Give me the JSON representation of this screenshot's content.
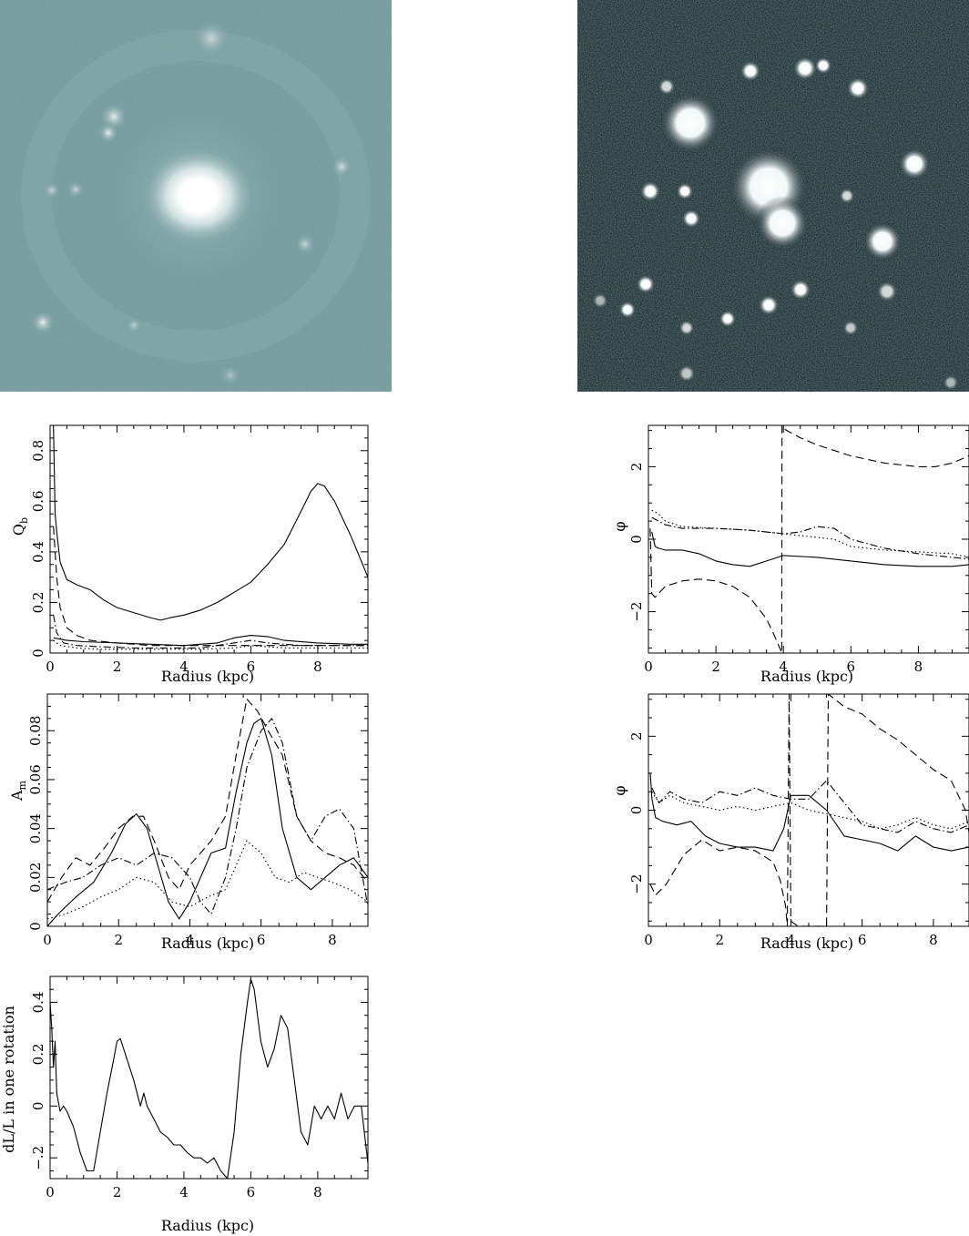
{
  "images": [
    {
      "description_name": "galaxy-blue-band-image",
      "tone": "#6f9698"
    },
    {
      "description_name": "galaxy-h-alpha-image",
      "tone": "#0f2124"
    }
  ],
  "chart_data": [
    {
      "id": "qb",
      "type": "line",
      "xlabel": "Radius (kpc)",
      "ylabel": "Q",
      "ylabel_sub": "b",
      "xlim": [
        0,
        9.5
      ],
      "ylim": [
        0,
        0.9
      ],
      "xticks": [
        0,
        2,
        4,
        6,
        8
      ],
      "yticks": [
        0,
        0.2,
        0.4,
        0.6,
        0.8
      ],
      "series": [
        {
          "style": "solid",
          "x": [
            0.1,
            0.15,
            0.2,
            0.3,
            0.5,
            0.8,
            1.2,
            1.6,
            2.0,
            2.5,
            3.0,
            3.3,
            3.6,
            4.0,
            4.5,
            5.0,
            5.5,
            6.0,
            6.5,
            7.0,
            7.5,
            7.8,
            8.0,
            8.2,
            8.5,
            9.0,
            9.5
          ],
          "y": [
            0.9,
            0.55,
            0.48,
            0.36,
            0.29,
            0.27,
            0.25,
            0.21,
            0.18,
            0.16,
            0.14,
            0.13,
            0.14,
            0.15,
            0.17,
            0.2,
            0.24,
            0.28,
            0.35,
            0.43,
            0.56,
            0.64,
            0.67,
            0.66,
            0.6,
            0.46,
            0.3
          ]
        },
        {
          "style": "dashed",
          "x": [
            0.1,
            0.2,
            0.3,
            0.5,
            0.8,
            1.2,
            2,
            3,
            4,
            5,
            6,
            7,
            8,
            9,
            9.5
          ],
          "y": [
            0.5,
            0.3,
            0.18,
            0.1,
            0.07,
            0.05,
            0.04,
            0.03,
            0.03,
            0.03,
            0.03,
            0.03,
            0.03,
            0.03,
            0.03
          ]
        },
        {
          "style": "dotdash",
          "x": [
            0.1,
            0.2,
            0.4,
            0.8,
            1.5,
            2.5,
            3.5,
            4.5,
            5.5,
            6.0,
            6.5,
            7.5,
            8.5,
            9.5
          ],
          "y": [
            0.15,
            0.08,
            0.04,
            0.03,
            0.025,
            0.02,
            0.02,
            0.02,
            0.04,
            0.05,
            0.04,
            0.03,
            0.03,
            0.03
          ]
        },
        {
          "style": "dotted",
          "x": [
            0.1,
            0.3,
            0.8,
            1.5,
            2.5,
            3.5,
            4.5,
            5.5,
            6.0,
            7.0,
            8.0,
            9.5
          ],
          "y": [
            0.05,
            0.03,
            0.02,
            0.015,
            0.015,
            0.015,
            0.015,
            0.02,
            0.03,
            0.02,
            0.02,
            0.02
          ]
        },
        {
          "style": "solid",
          "x": [
            0.1,
            0.5,
            1.0,
            2.0,
            3.0,
            4.0,
            5.0,
            5.5,
            6.0,
            6.5,
            7.0,
            8.0,
            9.0,
            9.5
          ],
          "y": [
            0.06,
            0.05,
            0.045,
            0.04,
            0.035,
            0.03,
            0.04,
            0.06,
            0.07,
            0.065,
            0.05,
            0.04,
            0.035,
            0.035
          ]
        }
      ]
    },
    {
      "id": "phi-top",
      "type": "line",
      "xlabel": "Radius (kpc)",
      "ylabel": "φ",
      "xlim": [
        0,
        9.5
      ],
      "ylim": [
        -3.1416,
        3.1416
      ],
      "xticks": [
        0,
        2,
        4,
        6,
        8
      ],
      "yticks": [
        -2,
        0,
        2
      ],
      "series": [
        {
          "style": "dashed",
          "x": [
            0.05,
            0.1,
            0.2,
            0.3,
            0.5,
            1.0,
            1.5,
            2.0,
            2.5,
            3.0,
            3.5,
            3.8,
            3.95,
            3.96,
            4.0,
            4.5,
            5.0,
            6.0,
            7.0,
            8.0,
            8.5,
            9.0,
            9.5
          ],
          "y": [
            0.3,
            -1.5,
            -1.6,
            -1.5,
            -1.3,
            -1.15,
            -1.1,
            -1.15,
            -1.3,
            -1.6,
            -2.2,
            -2.8,
            -3.14,
            3.14,
            3.05,
            2.8,
            2.6,
            2.3,
            2.1,
            2.0,
            2.0,
            2.1,
            2.3
          ]
        },
        {
          "style": "solid",
          "x": [
            0.1,
            0.2,
            0.3,
            0.5,
            1.0,
            1.5,
            2.0,
            2.5,
            3.0,
            3.5,
            4.0,
            5.0,
            6.0,
            7.0,
            8.0,
            9.0,
            9.5
          ],
          "y": [
            0.2,
            -0.2,
            -0.25,
            -0.3,
            -0.3,
            -0.4,
            -0.6,
            -0.7,
            -0.75,
            -0.6,
            -0.45,
            -0.5,
            -0.6,
            -0.7,
            -0.75,
            -0.75,
            -0.7
          ]
        },
        {
          "style": "dotted",
          "x": [
            0.1,
            0.3,
            0.5,
            1.0,
            2.0,
            3.0,
            4.0,
            4.5,
            5.0,
            5.5,
            6.0,
            7.0,
            8.0,
            9.0,
            9.5
          ],
          "y": [
            0.8,
            0.7,
            0.5,
            0.35,
            0.3,
            0.25,
            0.15,
            0.1,
            0.05,
            0.0,
            -0.2,
            -0.3,
            -0.35,
            -0.4,
            -0.5
          ]
        },
        {
          "style": "dotdash",
          "x": [
            0.1,
            0.3,
            0.5,
            1.0,
            2.0,
            3.0,
            4.0,
            4.5,
            5.0,
            5.5,
            6.0,
            7.0,
            8.0,
            9.0,
            9.5
          ],
          "y": [
            0.6,
            0.5,
            0.4,
            0.3,
            0.3,
            0.25,
            0.15,
            0.2,
            0.35,
            0.3,
            0.0,
            -0.25,
            -0.4,
            -0.5,
            -0.55
          ]
        }
      ]
    },
    {
      "id": "am",
      "type": "line",
      "xlabel": "Radius (kpc)",
      "ylabel": "A",
      "ylabel_sub": "m",
      "xlim": [
        0,
        9
      ],
      "ylim": [
        0,
        0.095
      ],
      "xticks": [
        0,
        2,
        4,
        6,
        8
      ],
      "yticks": [
        0,
        0.02,
        0.04,
        0.06,
        0.08
      ],
      "series": [
        {
          "style": "solid",
          "x": [
            0,
            0.3,
            0.8,
            1.3,
            1.8,
            2.2,
            2.5,
            2.8,
            3.1,
            3.4,
            3.7,
            4.0,
            4.3,
            4.6,
            5.0,
            5.3,
            5.6,
            5.8,
            6.0,
            6.3,
            6.6,
            7.0,
            7.4,
            7.8,
            8.2,
            8.6,
            9.0
          ],
          "y": [
            0.0,
            0.005,
            0.012,
            0.018,
            0.03,
            0.042,
            0.046,
            0.04,
            0.025,
            0.01,
            0.003,
            0.01,
            0.02,
            0.03,
            0.032,
            0.055,
            0.075,
            0.083,
            0.085,
            0.07,
            0.04,
            0.02,
            0.015,
            0.02,
            0.025,
            0.028,
            0.02
          ]
        },
        {
          "style": "dashed",
          "x": [
            0,
            0.4,
            0.8,
            1.2,
            1.6,
            2.0,
            2.4,
            2.7,
            3.0,
            3.4,
            3.7,
            4.0,
            4.3,
            4.6,
            5.0,
            5.3,
            5.6,
            5.9,
            6.2,
            6.6,
            7.0,
            7.4,
            7.8,
            8.2,
            8.6,
            9.0
          ],
          "y": [
            0.01,
            0.02,
            0.028,
            0.025,
            0.032,
            0.04,
            0.045,
            0.045,
            0.035,
            0.02,
            0.015,
            0.025,
            0.03,
            0.035,
            0.045,
            0.07,
            0.093,
            0.088,
            0.08,
            0.07,
            0.045,
            0.035,
            0.03,
            0.028,
            0.025,
            0.018
          ]
        },
        {
          "style": "dotdash",
          "x": [
            0,
            0.5,
            1.0,
            1.5,
            2.0,
            2.5,
            3.0,
            3.5,
            4.0,
            4.3,
            4.6,
            5.0,
            5.3,
            5.6,
            6.0,
            6.3,
            6.6,
            7.0,
            7.4,
            7.8,
            8.2,
            8.6,
            9.0
          ],
          "y": [
            0.015,
            0.018,
            0.02,
            0.025,
            0.028,
            0.025,
            0.03,
            0.028,
            0.02,
            0.01,
            0.005,
            0.02,
            0.04,
            0.065,
            0.08,
            0.085,
            0.075,
            0.045,
            0.035,
            0.045,
            0.048,
            0.04,
            0.008
          ]
        },
        {
          "style": "dotted",
          "x": [
            0,
            0.5,
            1.0,
            1.5,
            2.0,
            2.5,
            3.0,
            3.5,
            4.0,
            4.5,
            5.0,
            5.3,
            5.6,
            6.0,
            6.4,
            6.8,
            7.2,
            7.6,
            8.0,
            8.5,
            9.0
          ],
          "y": [
            0.003,
            0.005,
            0.008,
            0.012,
            0.015,
            0.02,
            0.018,
            0.01,
            0.008,
            0.012,
            0.015,
            0.025,
            0.035,
            0.03,
            0.02,
            0.018,
            0.022,
            0.02,
            0.018,
            0.015,
            0.01
          ]
        }
      ]
    },
    {
      "id": "phi-bottom",
      "type": "line",
      "xlabel": "Radius (kpc)",
      "ylabel": "φ",
      "xlim": [
        0,
        9
      ],
      "ylim": [
        -3.1416,
        3.1416
      ],
      "xticks": [
        0,
        2,
        4,
        6,
        8
      ],
      "yticks": [
        -2,
        0,
        2
      ],
      "series": [
        {
          "style": "dashed",
          "x": [
            0.05,
            0.2,
            0.5,
            1.0,
            1.5,
            2.0,
            2.5,
            3.0,
            3.5,
            3.7,
            3.85,
            3.9,
            3.95,
            4.0,
            4.2,
            4.6,
            4.9,
            5.0,
            5.05,
            5.5,
            6.0,
            6.5,
            7.0,
            7.5,
            8.0,
            8.5,
            8.9,
            9.0
          ],
          "y": [
            -2.0,
            -2.3,
            -2.0,
            -1.2,
            -0.8,
            -1.1,
            -1.0,
            -1.1,
            -1.4,
            -1.9,
            -2.6,
            -3.14,
            3.14,
            -3.0,
            -3.14,
            -3.14,
            -3.14,
            -3.14,
            3.14,
            2.8,
            2.6,
            2.2,
            1.9,
            1.5,
            1.1,
            0.8,
            0.0,
            -0.6
          ]
        },
        {
          "style": "solid",
          "x": [
            0.05,
            0.1,
            0.2,
            0.4,
            0.8,
            1.2,
            1.6,
            2.0,
            2.5,
            3.0,
            3.5,
            3.8,
            4.0,
            4.5,
            5.0,
            5.5,
            6.0,
            6.5,
            7.0,
            7.5,
            8.0,
            8.5,
            9.0
          ],
          "y": [
            1.0,
            0.3,
            -0.2,
            -0.3,
            -0.4,
            -0.3,
            -0.7,
            -0.9,
            -1.0,
            -1.0,
            -1.1,
            -0.5,
            0.4,
            0.4,
            0.0,
            -0.7,
            -0.8,
            -0.9,
            -1.1,
            -0.7,
            -1.0,
            -1.1,
            -1.0
          ]
        },
        {
          "style": "dotted",
          "x": [
            0.1,
            0.3,
            0.6,
            1.0,
            1.5,
            2.0,
            2.5,
            3.0,
            3.5,
            4.0,
            4.5,
            5.0,
            5.5,
            6.0,
            6.5,
            7.0,
            7.5,
            8.0,
            8.5,
            9.0
          ],
          "y": [
            0.5,
            0.2,
            0.4,
            0.2,
            0.1,
            0.0,
            0.1,
            0.0,
            0.1,
            0.2,
            0.0,
            -0.1,
            -0.2,
            -0.3,
            -0.5,
            -0.4,
            -0.2,
            -0.4,
            -0.5,
            -0.3
          ]
        },
        {
          "style": "dotdash",
          "x": [
            0.1,
            0.3,
            0.6,
            1.0,
            1.5,
            2.0,
            2.5,
            3.0,
            3.5,
            4.0,
            4.5,
            5.0,
            5.5,
            6.0,
            6.5,
            7.0,
            7.5,
            8.0,
            8.5,
            9.0
          ],
          "y": [
            0.6,
            0.2,
            0.5,
            0.3,
            0.2,
            0.5,
            0.4,
            0.6,
            0.4,
            0.3,
            0.3,
            0.8,
            0.2,
            -0.4,
            -0.5,
            -0.6,
            -0.3,
            -0.5,
            -0.6,
            -0.4
          ]
        }
      ]
    },
    {
      "id": "dl",
      "type": "line",
      "xlabel": "Radius (kpc)",
      "ylabel": "dL/L in one rotation",
      "xlim": [
        0,
        9.5
      ],
      "ylim": [
        -0.28,
        0.5
      ],
      "xticks": [
        0,
        2,
        4,
        6,
        8
      ],
      "yticks": [
        -0.2,
        0,
        0.2,
        0.4
      ],
      "series": [
        {
          "style": "solid",
          "x": [
            0.0,
            0.05,
            0.1,
            0.15,
            0.2,
            0.3,
            0.4,
            0.5,
            0.7,
            0.9,
            1.1,
            1.3,
            1.5,
            1.7,
            1.9,
            2.0,
            2.1,
            2.3,
            2.5,
            2.7,
            2.8,
            2.9,
            3.1,
            3.3,
            3.5,
            3.7,
            3.9,
            4.1,
            4.3,
            4.5,
            4.7,
            4.9,
            5.1,
            5.3,
            5.5,
            5.7,
            5.9,
            6.0,
            6.1,
            6.3,
            6.5,
            6.7,
            6.9,
            7.1,
            7.3,
            7.5,
            7.7,
            7.9,
            8.1,
            8.3,
            8.5,
            8.7,
            8.9,
            9.1,
            9.3,
            9.5
          ],
          "y": [
            0.4,
            0.3,
            0.15,
            0.25,
            0.05,
            -0.02,
            0.0,
            -0.02,
            -0.08,
            -0.18,
            -0.25,
            -0.25,
            -0.1,
            0.05,
            0.18,
            0.25,
            0.26,
            0.18,
            0.1,
            0.0,
            0.05,
            0.0,
            -0.05,
            -0.1,
            -0.12,
            -0.15,
            -0.15,
            -0.18,
            -0.2,
            -0.2,
            -0.22,
            -0.2,
            -0.25,
            -0.28,
            -0.1,
            0.2,
            0.4,
            0.49,
            0.45,
            0.25,
            0.15,
            0.22,
            0.35,
            0.3,
            0.1,
            -0.1,
            -0.15,
            0.0,
            -0.05,
            0.0,
            -0.05,
            0.05,
            -0.05,
            0.0,
            0.0,
            -0.22
          ]
        }
      ]
    }
  ]
}
